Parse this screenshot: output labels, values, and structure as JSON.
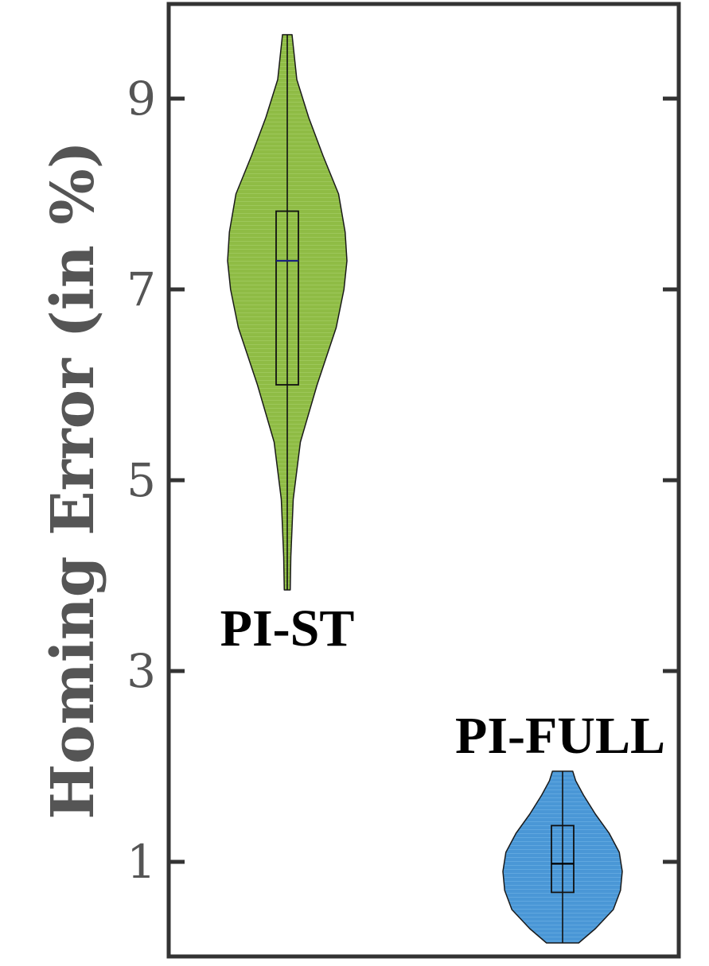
{
  "chart_data": {
    "type": "violin",
    "ylabel": "Homing Error (in %)",
    "xlabel": "",
    "ylim": [
      0.0,
      10.0
    ],
    "yticks": [
      1,
      3,
      5,
      7,
      9
    ],
    "grid": false,
    "series": [
      {
        "name": "PI-ST",
        "color": "#8fbc45",
        "min": 3.85,
        "q1": 6.0,
        "median": 7.3,
        "q3": 7.82,
        "max": 9.67,
        "median_color": "#1a237e",
        "density": [
          [
            3.85,
            0.05
          ],
          [
            4.2,
            0.06
          ],
          [
            4.8,
            0.1
          ],
          [
            5.4,
            0.22
          ],
          [
            6.0,
            0.5
          ],
          [
            6.6,
            0.82
          ],
          [
            7.0,
            0.95
          ],
          [
            7.3,
            1.0
          ],
          [
            7.6,
            0.97
          ],
          [
            8.0,
            0.86
          ],
          [
            8.4,
            0.6
          ],
          [
            8.8,
            0.36
          ],
          [
            9.2,
            0.16
          ],
          [
            9.67,
            0.08
          ]
        ]
      },
      {
        "name": "PI-FULL",
        "color": "#4a97d6",
        "min": 0.15,
        "q1": 0.68,
        "median": 0.98,
        "q3": 1.38,
        "max": 1.95,
        "median_color": "#000000",
        "density": [
          [
            0.15,
            0.27
          ],
          [
            0.3,
            0.55
          ],
          [
            0.5,
            0.85
          ],
          [
            0.7,
            0.97
          ],
          [
            0.9,
            1.0
          ],
          [
            1.1,
            0.95
          ],
          [
            1.3,
            0.78
          ],
          [
            1.5,
            0.55
          ],
          [
            1.7,
            0.35
          ],
          [
            1.85,
            0.22
          ],
          [
            1.95,
            0.17
          ]
        ]
      }
    ]
  }
}
